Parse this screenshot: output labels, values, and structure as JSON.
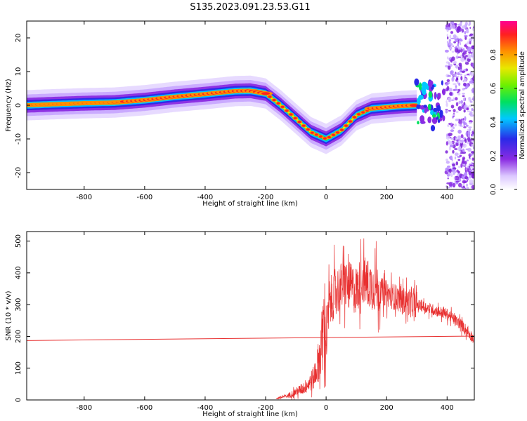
{
  "title": "S135.2023.091.23.53.G11",
  "chart_data": [
    {
      "type": "heatmap",
      "xlabel": "Height of straight line (km)",
      "ylabel": "Frequency (Hz)",
      "xlim": [
        -990,
        490
      ],
      "ylim": [
        -25,
        25
      ],
      "xticks": [
        -800,
        -600,
        -400,
        -200,
        0,
        200,
        400
      ],
      "yticks": [
        -20,
        -10,
        0,
        10,
        20
      ],
      "colorbar": {
        "label": "Normalized spectral amplitude",
        "range": [
          0,
          1
        ],
        "ticks": [
          0.0,
          0.2,
          0.4,
          0.6,
          0.8
        ],
        "colormap": [
          "#ffffff",
          "#dcc8ff",
          "#8a2be2",
          "#2a2ae8",
          "#00c8ff",
          "#00e060",
          "#6ef000",
          "#e8e800",
          "#ff9000",
          "#ff2020",
          "#ff0090"
        ]
      },
      "ridge": {
        "x": [
          -990,
          -900,
          -800,
          -700,
          -600,
          -500,
          -400,
          -300,
          -250,
          -200,
          -150,
          -100,
          -50,
          0,
          50,
          100,
          150,
          200,
          250,
          300
        ],
        "y": [
          0,
          0.3,
          0.6,
          0.8,
          1.5,
          2.5,
          3.3,
          4.2,
          4.3,
          3.5,
          0,
          -4,
          -8,
          -10,
          -7.5,
          -3,
          -1,
          -0.6,
          -0.2,
          0
        ]
      },
      "notes": "Spectral ridge; scattered blobs 300-380 km; noise beyond ~400 km"
    },
    {
      "type": "line",
      "xlabel": "Height of straight line (km)",
      "ylabel": "SNR (10 * v/v)",
      "xlim": [
        -990,
        490
      ],
      "ylim": [
        0,
        530
      ],
      "xticks": [
        -800,
        -600,
        -400,
        -200,
        0,
        200,
        400
      ],
      "yticks": [
        0,
        100,
        200,
        300,
        400,
        500
      ],
      "series": [
        {
          "color": "#e83030",
          "x": [
            -165,
            -130,
            -100,
            -70,
            -40,
            -20,
            -5,
            0,
            10,
            30,
            60,
            100,
            120,
            150,
            200,
            250,
            300,
            350,
            400,
            450,
            490
          ],
          "y": [
            5,
            12,
            25,
            40,
            70,
            140,
            260,
            170,
            300,
            340,
            365,
            345,
            380,
            360,
            335,
            315,
            300,
            285,
            270,
            235,
            190
          ]
        },
        {
          "color": "#e83030",
          "x": [
            -990,
            490
          ],
          "y": [
            187,
            201
          ]
        }
      ]
    }
  ]
}
